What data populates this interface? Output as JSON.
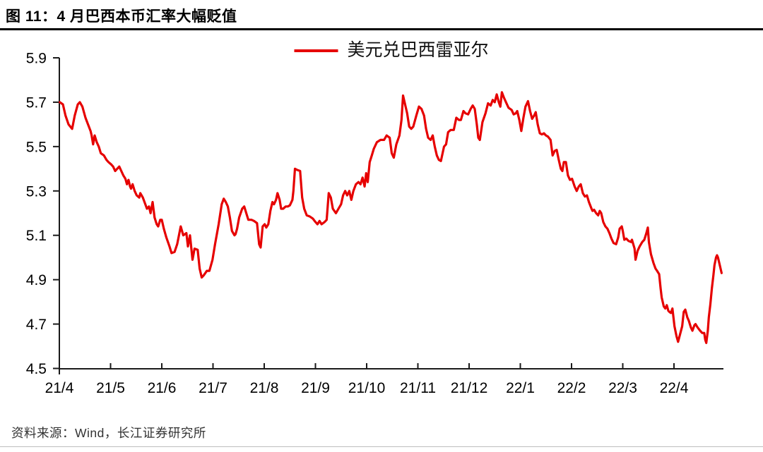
{
  "figure": {
    "title": "图 11：4 月巴西本币汇率大幅贬值",
    "source_note": "资料来源：Wind，长江证券研究所"
  },
  "chart_data": {
    "type": "line",
    "title": "图 11：4 月巴西本币汇率大幅贬值",
    "legend": "美元兑巴西雷亚尔",
    "line_color": "#e60000",
    "axis_color": "#1a1a1a",
    "grid": false,
    "legend_position": "top-center",
    "ylim": [
      4.5,
      5.9
    ],
    "y_ticks": [
      5.9,
      5.7,
      5.5,
      5.3,
      5.1,
      4.9,
      4.7,
      4.5
    ],
    "x_tick_labels": [
      "21/4",
      "21/5",
      "21/6",
      "21/7",
      "21/8",
      "21/9",
      "21/10",
      "21/11",
      "21/12",
      "22/1",
      "22/2",
      "22/3",
      "22/4"
    ],
    "x_unit": "months since 2021/4 (x-tick i = month index i)",
    "xlim_months": [
      0,
      12.97
    ],
    "points": [
      [
        0.01,
        5.7
      ],
      [
        0.07,
        5.69
      ],
      [
        0.12,
        5.64
      ],
      [
        0.18,
        5.6
      ],
      [
        0.25,
        5.58
      ],
      [
        0.3,
        5.64
      ],
      [
        0.36,
        5.69
      ],
      [
        0.4,
        5.7
      ],
      [
        0.45,
        5.68
      ],
      [
        0.51,
        5.63
      ],
      [
        0.56,
        5.6
      ],
      [
        0.61,
        5.57
      ],
      [
        0.63,
        5.55
      ],
      [
        0.66,
        5.51
      ],
      [
        0.69,
        5.55
      ],
      [
        0.73,
        5.52
      ],
      [
        0.77,
        5.5
      ],
      [
        0.81,
        5.47
      ],
      [
        0.87,
        5.46
      ],
      [
        0.92,
        5.44
      ],
      [
        0.96,
        5.43
      ],
      [
        1.01,
        5.42
      ],
      [
        1.05,
        5.41
      ],
      [
        1.09,
        5.39
      ],
      [
        1.13,
        5.4
      ],
      [
        1.17,
        5.41
      ],
      [
        1.21,
        5.39
      ],
      [
        1.25,
        5.37
      ],
      [
        1.29,
        5.355
      ],
      [
        1.32,
        5.33
      ],
      [
        1.35,
        5.35
      ],
      [
        1.38,
        5.32
      ],
      [
        1.4,
        5.31
      ],
      [
        1.43,
        5.33
      ],
      [
        1.47,
        5.3
      ],
      [
        1.51,
        5.28
      ],
      [
        1.56,
        5.27
      ],
      [
        1.58,
        5.29
      ],
      [
        1.63,
        5.27
      ],
      [
        1.67,
        5.245
      ],
      [
        1.71,
        5.22
      ],
      [
        1.75,
        5.23
      ],
      [
        1.78,
        5.2
      ],
      [
        1.82,
        5.25
      ],
      [
        1.86,
        5.18
      ],
      [
        1.9,
        5.15
      ],
      [
        1.93,
        5.14
      ],
      [
        1.97,
        5.17
      ],
      [
        2.0,
        5.17
      ],
      [
        2.04,
        5.13
      ],
      [
        2.09,
        5.09
      ],
      [
        2.15,
        5.05
      ],
      [
        2.19,
        5.02
      ],
      [
        2.25,
        5.025
      ],
      [
        2.3,
        5.06
      ],
      [
        2.37,
        5.14
      ],
      [
        2.42,
        5.1
      ],
      [
        2.48,
        5.11
      ],
      [
        2.51,
        5.05
      ],
      [
        2.55,
        5.1
      ],
      [
        2.6,
        4.99
      ],
      [
        2.64,
        5.04
      ],
      [
        2.7,
        5.035
      ],
      [
        2.74,
        4.95
      ],
      [
        2.78,
        4.91
      ],
      [
        2.82,
        4.92
      ],
      [
        2.88,
        4.94
      ],
      [
        2.93,
        4.94
      ],
      [
        2.99,
        4.99
      ],
      [
        3.04,
        5.06
      ],
      [
        3.11,
        5.15
      ],
      [
        3.17,
        5.24
      ],
      [
        3.21,
        5.265
      ],
      [
        3.25,
        5.25
      ],
      [
        3.29,
        5.23
      ],
      [
        3.33,
        5.18
      ],
      [
        3.37,
        5.12
      ],
      [
        3.42,
        5.1
      ],
      [
        3.44,
        5.105
      ],
      [
        3.47,
        5.13
      ],
      [
        3.51,
        5.18
      ],
      [
        3.57,
        5.22
      ],
      [
        3.61,
        5.23
      ],
      [
        3.65,
        5.2
      ],
      [
        3.69,
        5.17
      ],
      [
        3.75,
        5.17
      ],
      [
        3.8,
        5.165
      ],
      [
        3.86,
        5.155
      ],
      [
        3.9,
        5.06
      ],
      [
        3.93,
        5.045
      ],
      [
        3.97,
        5.14
      ],
      [
        4.01,
        5.15
      ],
      [
        4.04,
        5.135
      ],
      [
        4.08,
        5.15
      ],
      [
        4.12,
        5.21
      ],
      [
        4.16,
        5.25
      ],
      [
        4.19,
        5.24
      ],
      [
        4.23,
        5.26
      ],
      [
        4.26,
        5.29
      ],
      [
        4.3,
        5.26
      ],
      [
        4.33,
        5.22
      ],
      [
        4.37,
        5.22
      ],
      [
        4.42,
        5.23
      ],
      [
        4.46,
        5.23
      ],
      [
        4.5,
        5.235
      ],
      [
        4.55,
        5.26
      ],
      [
        4.57,
        5.3
      ],
      [
        4.6,
        5.4
      ],
      [
        4.64,
        5.395
      ],
      [
        4.7,
        5.39
      ],
      [
        4.74,
        5.27
      ],
      [
        4.78,
        5.22
      ],
      [
        4.83,
        5.19
      ],
      [
        4.89,
        5.185
      ],
      [
        4.95,
        5.175
      ],
      [
        5.0,
        5.16
      ],
      [
        5.04,
        5.15
      ],
      [
        5.08,
        5.165
      ],
      [
        5.12,
        5.15
      ],
      [
        5.18,
        5.16
      ],
      [
        5.22,
        5.17
      ],
      [
        5.26,
        5.29
      ],
      [
        5.3,
        5.27
      ],
      [
        5.34,
        5.22
      ],
      [
        5.4,
        5.2
      ],
      [
        5.45,
        5.22
      ],
      [
        5.5,
        5.24
      ],
      [
        5.54,
        5.28
      ],
      [
        5.58,
        5.3
      ],
      [
        5.62,
        5.28
      ],
      [
        5.66,
        5.3
      ],
      [
        5.7,
        5.26
      ],
      [
        5.74,
        5.3
      ],
      [
        5.79,
        5.33
      ],
      [
        5.84,
        5.34
      ],
      [
        5.88,
        5.33
      ],
      [
        5.92,
        5.36
      ],
      [
        5.96,
        5.32
      ],
      [
        5.99,
        5.38
      ],
      [
        6.02,
        5.34
      ],
      [
        6.06,
        5.43
      ],
      [
        6.1,
        5.46
      ],
      [
        6.14,
        5.49
      ],
      [
        6.2,
        5.52
      ],
      [
        6.27,
        5.53
      ],
      [
        6.34,
        5.53
      ],
      [
        6.39,
        5.55
      ],
      [
        6.45,
        5.54
      ],
      [
        6.49,
        5.47
      ],
      [
        6.53,
        5.45
      ],
      [
        6.58,
        5.51
      ],
      [
        6.64,
        5.55
      ],
      [
        6.68,
        5.62
      ],
      [
        6.71,
        5.73
      ],
      [
        6.75,
        5.69
      ],
      [
        6.79,
        5.65
      ],
      [
        6.83,
        5.59
      ],
      [
        6.87,
        5.58
      ],
      [
        6.91,
        5.59
      ],
      [
        6.97,
        5.64
      ],
      [
        7.02,
        5.68
      ],
      [
        7.07,
        5.67
      ],
      [
        7.12,
        5.64
      ],
      [
        7.16,
        5.58
      ],
      [
        7.2,
        5.54
      ],
      [
        7.25,
        5.53
      ],
      [
        7.29,
        5.55
      ],
      [
        7.33,
        5.5
      ],
      [
        7.37,
        5.46
      ],
      [
        7.41,
        5.44
      ],
      [
        7.45,
        5.435
      ],
      [
        7.51,
        5.5
      ],
      [
        7.55,
        5.51
      ],
      [
        7.59,
        5.565
      ],
      [
        7.64,
        5.575
      ],
      [
        7.7,
        5.575
      ],
      [
        7.75,
        5.63
      ],
      [
        7.8,
        5.62
      ],
      [
        7.84,
        5.62
      ],
      [
        7.89,
        5.66
      ],
      [
        7.93,
        5.65
      ],
      [
        7.98,
        5.645
      ],
      [
        8.03,
        5.67
      ],
      [
        8.07,
        5.685
      ],
      [
        8.11,
        5.67
      ],
      [
        8.15,
        5.6
      ],
      [
        8.18,
        5.54
      ],
      [
        8.21,
        5.53
      ],
      [
        8.26,
        5.61
      ],
      [
        8.32,
        5.65
      ],
      [
        8.37,
        5.695
      ],
      [
        8.42,
        5.685
      ],
      [
        8.46,
        5.71
      ],
      [
        8.5,
        5.7
      ],
      [
        8.54,
        5.735
      ],
      [
        8.58,
        5.7
      ],
      [
        8.61,
        5.68
      ],
      [
        8.64,
        5.745
      ],
      [
        8.68,
        5.72
      ],
      [
        8.72,
        5.7
      ],
      [
        8.77,
        5.675
      ],
      [
        8.83,
        5.665
      ],
      [
        8.87,
        5.645
      ],
      [
        8.91,
        5.65
      ],
      [
        8.94,
        5.66
      ],
      [
        8.98,
        5.62
      ],
      [
        9.02,
        5.57
      ],
      [
        9.06,
        5.63
      ],
      [
        9.1,
        5.68
      ],
      [
        9.15,
        5.705
      ],
      [
        9.19,
        5.66
      ],
      [
        9.23,
        5.625
      ],
      [
        9.27,
        5.64
      ],
      [
        9.3,
        5.655
      ],
      [
        9.34,
        5.6
      ],
      [
        9.38,
        5.56
      ],
      [
        9.42,
        5.555
      ],
      [
        9.46,
        5.56
      ],
      [
        9.5,
        5.55
      ],
      [
        9.54,
        5.545
      ],
      [
        9.59,
        5.53
      ],
      [
        9.63,
        5.46
      ],
      [
        9.67,
        5.48
      ],
      [
        9.71,
        5.485
      ],
      [
        9.75,
        5.44
      ],
      [
        9.79,
        5.4
      ],
      [
        9.82,
        5.39
      ],
      [
        9.85,
        5.43
      ],
      [
        9.89,
        5.43
      ],
      [
        9.93,
        5.37
      ],
      [
        9.97,
        5.35
      ],
      [
        10.01,
        5.355
      ],
      [
        10.06,
        5.32
      ],
      [
        10.1,
        5.3
      ],
      [
        10.14,
        5.32
      ],
      [
        10.18,
        5.33
      ],
      [
        10.22,
        5.29
      ],
      [
        10.26,
        5.275
      ],
      [
        10.3,
        5.28
      ],
      [
        10.34,
        5.25
      ],
      [
        10.39,
        5.22
      ],
      [
        10.41,
        5.21
      ],
      [
        10.44,
        5.215
      ],
      [
        10.48,
        5.2
      ],
      [
        10.52,
        5.19
      ],
      [
        10.55,
        5.21
      ],
      [
        10.58,
        5.2
      ],
      [
        10.62,
        5.16
      ],
      [
        10.66,
        5.14
      ],
      [
        10.7,
        5.13
      ],
      [
        10.74,
        5.11
      ],
      [
        10.78,
        5.085
      ],
      [
        10.82,
        5.065
      ],
      [
        10.87,
        5.06
      ],
      [
        10.91,
        5.09
      ],
      [
        10.94,
        5.13
      ],
      [
        10.98,
        5.14
      ],
      [
        11.0,
        5.12
      ],
      [
        11.03,
        5.08
      ],
      [
        11.07,
        5.085
      ],
      [
        11.11,
        5.075
      ],
      [
        11.16,
        5.07
      ],
      [
        11.18,
        5.08
      ],
      [
        11.23,
        5.04
      ],
      [
        11.25,
        4.99
      ],
      [
        11.29,
        5.03
      ],
      [
        11.33,
        5.05
      ],
      [
        11.38,
        5.07
      ],
      [
        11.42,
        5.08
      ],
      [
        11.46,
        5.11
      ],
      [
        11.49,
        5.135
      ],
      [
        11.51,
        5.07
      ],
      [
        11.55,
        5.015
      ],
      [
        11.6,
        4.975
      ],
      [
        11.64,
        4.95
      ],
      [
        11.67,
        4.94
      ],
      [
        11.71,
        4.925
      ],
      [
        11.74,
        4.86
      ],
      [
        11.76,
        4.82
      ],
      [
        11.8,
        4.78
      ],
      [
        11.83,
        4.77
      ],
      [
        11.86,
        4.785
      ],
      [
        11.89,
        4.76
      ],
      [
        11.91,
        4.755
      ],
      [
        11.94,
        4.75
      ],
      [
        11.97,
        4.77
      ],
      [
        12.01,
        4.69
      ],
      [
        12.05,
        4.645
      ],
      [
        12.08,
        4.62
      ],
      [
        12.12,
        4.655
      ],
      [
        12.16,
        4.69
      ],
      [
        12.19,
        4.755
      ],
      [
        12.22,
        4.765
      ],
      [
        12.26,
        4.73
      ],
      [
        12.29,
        4.715
      ],
      [
        12.33,
        4.685
      ],
      [
        12.36,
        4.67
      ],
      [
        12.4,
        4.695
      ],
      [
        12.42,
        4.7
      ],
      [
        12.46,
        4.685
      ],
      [
        12.51,
        4.67
      ],
      [
        12.55,
        4.66
      ],
      [
        12.59,
        4.66
      ],
      [
        12.61,
        4.63
      ],
      [
        12.63,
        4.615
      ],
      [
        12.66,
        4.67
      ],
      [
        12.68,
        4.73
      ],
      [
        12.71,
        4.79
      ],
      [
        12.74,
        4.86
      ],
      [
        12.77,
        4.92
      ],
      [
        12.79,
        4.965
      ],
      [
        12.82,
        5.0
      ],
      [
        12.84,
        5.01
      ],
      [
        12.86,
        5.0
      ],
      [
        12.89,
        4.97
      ],
      [
        12.93,
        4.93
      ]
    ]
  }
}
